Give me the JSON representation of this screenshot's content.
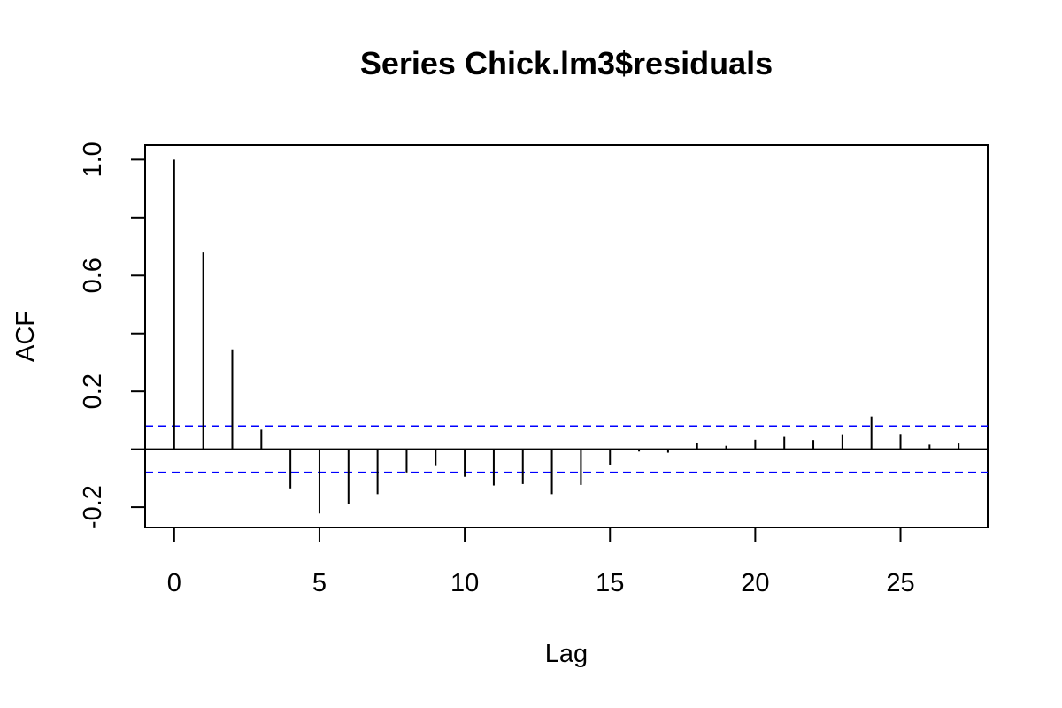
{
  "chart_data": {
    "type": "bar",
    "title": "Series  Chick.lm3$residuals",
    "xlabel": "Lag",
    "ylabel": "ACF",
    "xlim": [
      -1,
      28
    ],
    "ylim": [
      -0.27,
      1.05
    ],
    "x_ticks": [
      0,
      5,
      10,
      15,
      20,
      25
    ],
    "y_ticks": [
      -0.2,
      0.2,
      0.6,
      1.0
    ],
    "y_tick_labels": [
      "-0.2",
      "0.2",
      "0.6",
      "1.0"
    ],
    "y_minor_ticks": [
      0.0,
      0.4,
      0.8
    ],
    "lags": [
      0,
      1,
      2,
      3,
      4,
      5,
      6,
      7,
      8,
      9,
      10,
      11,
      12,
      13,
      14,
      15,
      16,
      17,
      18,
      19,
      20,
      21,
      22,
      23,
      24,
      25,
      26,
      27
    ],
    "acf": [
      1.0,
      0.68,
      0.345,
      0.068,
      -0.135,
      -0.222,
      -0.19,
      -0.155,
      -0.08,
      -0.055,
      -0.095,
      -0.125,
      -0.12,
      -0.155,
      -0.123,
      -0.053,
      -0.008,
      -0.012,
      0.022,
      0.012,
      0.033,
      0.043,
      0.032,
      0.052,
      0.113,
      0.053,
      0.016,
      0.02
    ],
    "confidence_band": 0.08,
    "colors": {
      "bars": "#000000",
      "confidence": "#0000ff",
      "axes": "#000000"
    },
    "grid": false,
    "legend": "none"
  }
}
